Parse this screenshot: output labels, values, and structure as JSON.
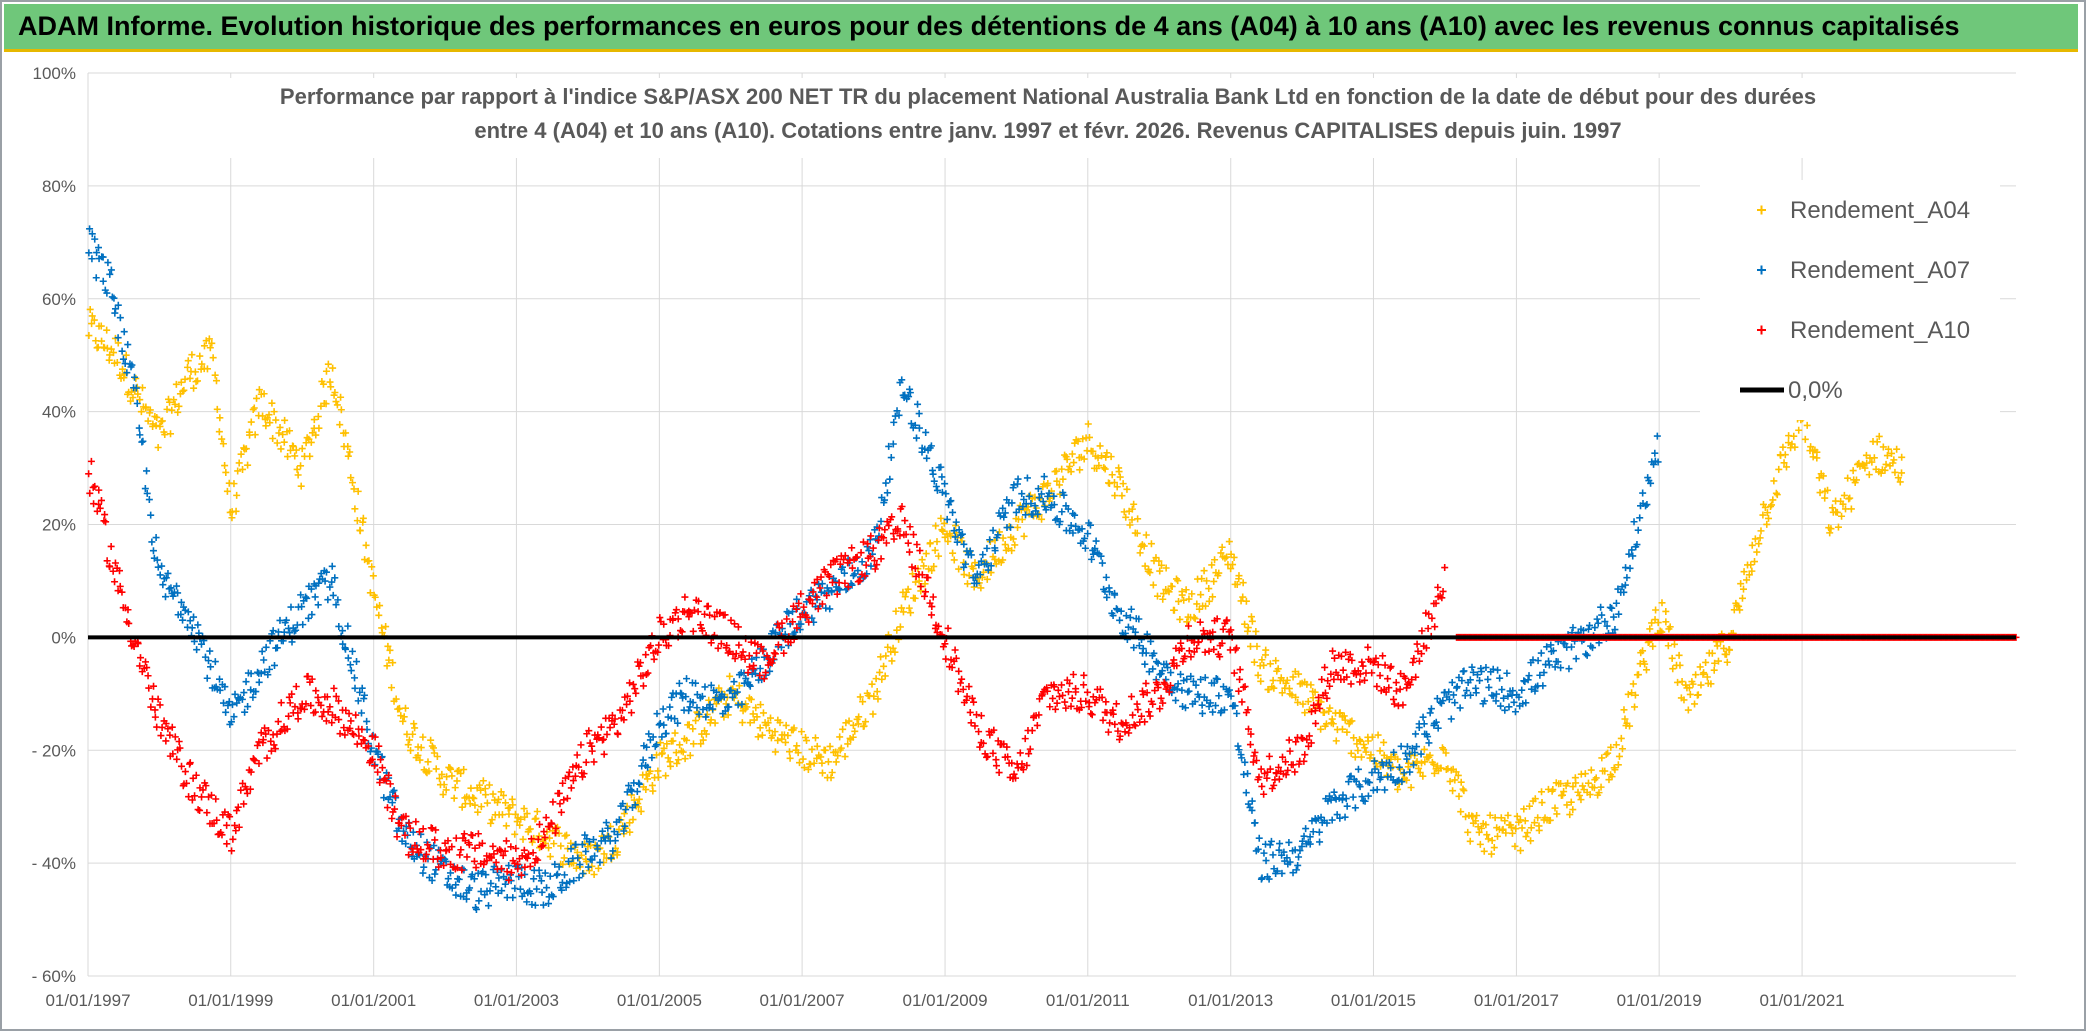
{
  "banner": {
    "title": "ADAM Informe. Evolution historique des performances en euros pour des détentions de 4 ans (A04) à 10 ans (A10) avec les revenus connus capitalisés"
  },
  "colors": {
    "banner_bg": "#6fc77a",
    "banner_border": "#e6b800",
    "A04": "#ffc000",
    "A07": "#0070c0",
    "A10": "#ff0000",
    "zero_line": "#000000"
  },
  "chart_data": {
    "type": "scatter",
    "title_lines": [
      "Performance par rapport à l'indice S&P/ASX 200 NET TR  du placement National Australia Bank Ltd en fonction de la date de début pour des durées",
      "entre 4 (A04) et 10 ans (A10). Cotations entre janv. 1997 et févr. 2026. Revenus CAPITALISES depuis juin. 1997"
    ],
    "x_ticks": [
      "01/01/1997",
      "01/01/1999",
      "01/01/2001",
      "01/01/2003",
      "01/01/2005",
      "01/01/2007",
      "01/01/2009",
      "01/01/2011",
      "01/01/2013",
      "01/01/2015",
      "01/01/2017",
      "01/01/2019",
      "01/01/2021"
    ],
    "y_ticks": [
      "100%",
      "80%",
      "60%",
      "40%",
      "20%",
      "0%",
      "- 20%",
      "- 40%",
      "- 60%"
    ],
    "xlim": [
      "1997-01-01",
      "2023-12-31"
    ],
    "ylim": [
      -60,
      100
    ],
    "y_unit": "%",
    "legend_position": "top-right",
    "legend": [
      "Rendement_A04",
      "Rendement_A07",
      "Rendement_A10",
      "0,0%"
    ],
    "series": [
      {
        "name": "Rendement_A04",
        "color": "#ffc000",
        "x": [
          "1997-01-01",
          "1997-06-01",
          "1998-01-01",
          "1998-06-01",
          "1998-10-01",
          "1999-01-01",
          "1999-06-01",
          "2000-01-01",
          "2000-06-01",
          "2001-01-01",
          "2001-06-01",
          "2002-01-01",
          "2002-06-01",
          "2003-01-01",
          "2003-06-01",
          "2004-01-01",
          "2004-06-01",
          "2005-01-01",
          "2005-06-01",
          "2006-01-01",
          "2006-06-01",
          "2007-01-01",
          "2007-06-01",
          "2008-01-01",
          "2008-06-01",
          "2009-01-01",
          "2009-06-01",
          "2010-01-01",
          "2010-06-01",
          "2011-01-01",
          "2011-06-01",
          "2012-01-01",
          "2012-06-01",
          "2013-01-01",
          "2013-06-01",
          "2014-01-01",
          "2014-06-01",
          "2015-01-01",
          "2015-06-01",
          "2016-01-01",
          "2016-06-01",
          "2017-01-01",
          "2017-06-01",
          "2018-01-01",
          "2018-06-01",
          "2019-01-01",
          "2019-06-01",
          "2020-01-01",
          "2020-06-01",
          "2021-01-01",
          "2021-06-01",
          "2022-01-01",
          "2022-06-01"
        ],
        "y": [
          55,
          50,
          35,
          47,
          50,
          22,
          42,
          30,
          48,
          8,
          -15,
          -25,
          -28,
          -32,
          -35,
          -40,
          -35,
          -22,
          -18,
          -10,
          -15,
          -20,
          -22,
          -10,
          5,
          20,
          10,
          20,
          25,
          35,
          28,
          10,
          5,
          15,
          -5,
          -10,
          -15,
          -20,
          -25,
          -20,
          -35,
          -35,
          -30,
          -27,
          -20,
          5,
          -12,
          0,
          20,
          40,
          20,
          33,
          30
        ]
      },
      {
        "name": "Rendement_A07",
        "color": "#0070c0",
        "x": [
          "1997-01-01",
          "1997-05-01",
          "1997-09-01",
          "1998-01-01",
          "1998-06-01",
          "1999-01-01",
          "1999-06-01",
          "2000-01-01",
          "2000-06-01",
          "2001-01-01",
          "2001-06-01",
          "2002-01-01",
          "2002-06-01",
          "2003-01-01",
          "2003-06-01",
          "2004-01-01",
          "2004-06-01",
          "2005-01-01",
          "2005-06-01",
          "2006-01-01",
          "2006-06-01",
          "2007-01-01",
          "2007-06-01",
          "2008-01-01",
          "2008-06-01",
          "2009-01-01",
          "2009-06-01",
          "2010-01-01",
          "2010-06-01",
          "2011-01-01",
          "2011-06-01",
          "2012-01-01",
          "2012-06-01",
          "2013-01-01",
          "2013-06-01",
          "2014-01-01",
          "2014-06-01",
          "2015-01-01",
          "2015-06-01",
          "2016-01-01",
          "2016-06-01",
          "2017-01-01",
          "2017-06-01",
          "2018-01-01",
          "2018-06-01",
          "2019-01-01"
        ],
        "y": [
          70,
          62,
          42,
          10,
          5,
          -15,
          -5,
          5,
          10,
          -20,
          -35,
          -42,
          -45,
          -43,
          -45,
          -38,
          -35,
          -15,
          -10,
          -12,
          -5,
          5,
          8,
          15,
          45,
          25,
          10,
          25,
          25,
          18,
          5,
          -5,
          -10,
          -10,
          -40,
          -38,
          -30,
          -25,
          -22,
          -12,
          -8,
          -10,
          -5,
          0,
          5,
          35
        ]
      },
      {
        "name": "Rendement_A10",
        "color": "#ff0000",
        "x": [
          "1997-01-01",
          "1997-06-01",
          "1998-01-01",
          "1998-06-01",
          "1999-01-01",
          "1999-06-01",
          "2000-01-01",
          "2000-06-01",
          "2001-01-01",
          "2001-06-01",
          "2002-01-01",
          "2002-06-01",
          "2003-01-01",
          "2003-06-01",
          "2004-01-01",
          "2004-06-01",
          "2005-01-01",
          "2005-06-01",
          "2006-01-01",
          "2006-06-01",
          "2007-01-01",
          "2007-06-01",
          "2008-01-01",
          "2008-06-01",
          "2009-01-01",
          "2009-06-01",
          "2010-01-01",
          "2010-06-01",
          "2011-01-01",
          "2011-06-01",
          "2012-01-01",
          "2012-06-01",
          "2013-01-01",
          "2013-06-01",
          "2014-01-01",
          "2014-06-01",
          "2015-01-01",
          "2015-06-01",
          "2016-01-01"
        ],
        "y": [
          30,
          10,
          -15,
          -25,
          -35,
          -20,
          -10,
          -12,
          -20,
          -35,
          -38,
          -38,
          -40,
          -35,
          -20,
          -15,
          0,
          5,
          0,
          -5,
          5,
          10,
          15,
          20,
          0,
          -15,
          -25,
          -10,
          -10,
          -15,
          -10,
          0,
          0,
          -25,
          -20,
          -5,
          -5,
          -10,
          10
        ]
      }
    ],
    "flat_zero_segment": {
      "name": "Rendement_A10",
      "x_start": "2016-03-01",
      "x_end": "2023-12-31",
      "y": 0
    },
    "reference_line": {
      "name": "0,0%",
      "y": 0
    }
  }
}
